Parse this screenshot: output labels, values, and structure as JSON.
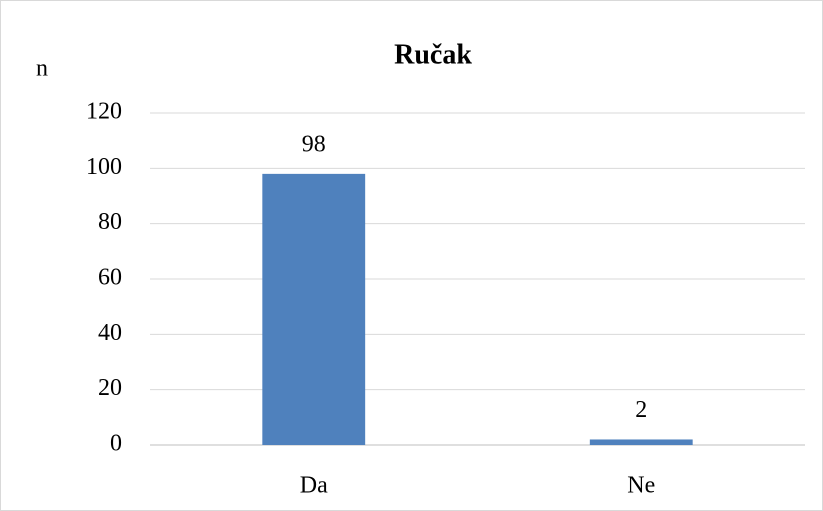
{
  "chart_data": {
    "type": "bar",
    "title": "Ručak",
    "y_label": "n",
    "categories": [
      "Da",
      "Ne"
    ],
    "values": [
      98,
      2
    ],
    "color": "#4f81bd",
    "ylim": [
      0,
      120
    ],
    "yticks": [
      0,
      20,
      40,
      60,
      80,
      100,
      120
    ],
    "grid": true,
    "data_labels": true
  }
}
